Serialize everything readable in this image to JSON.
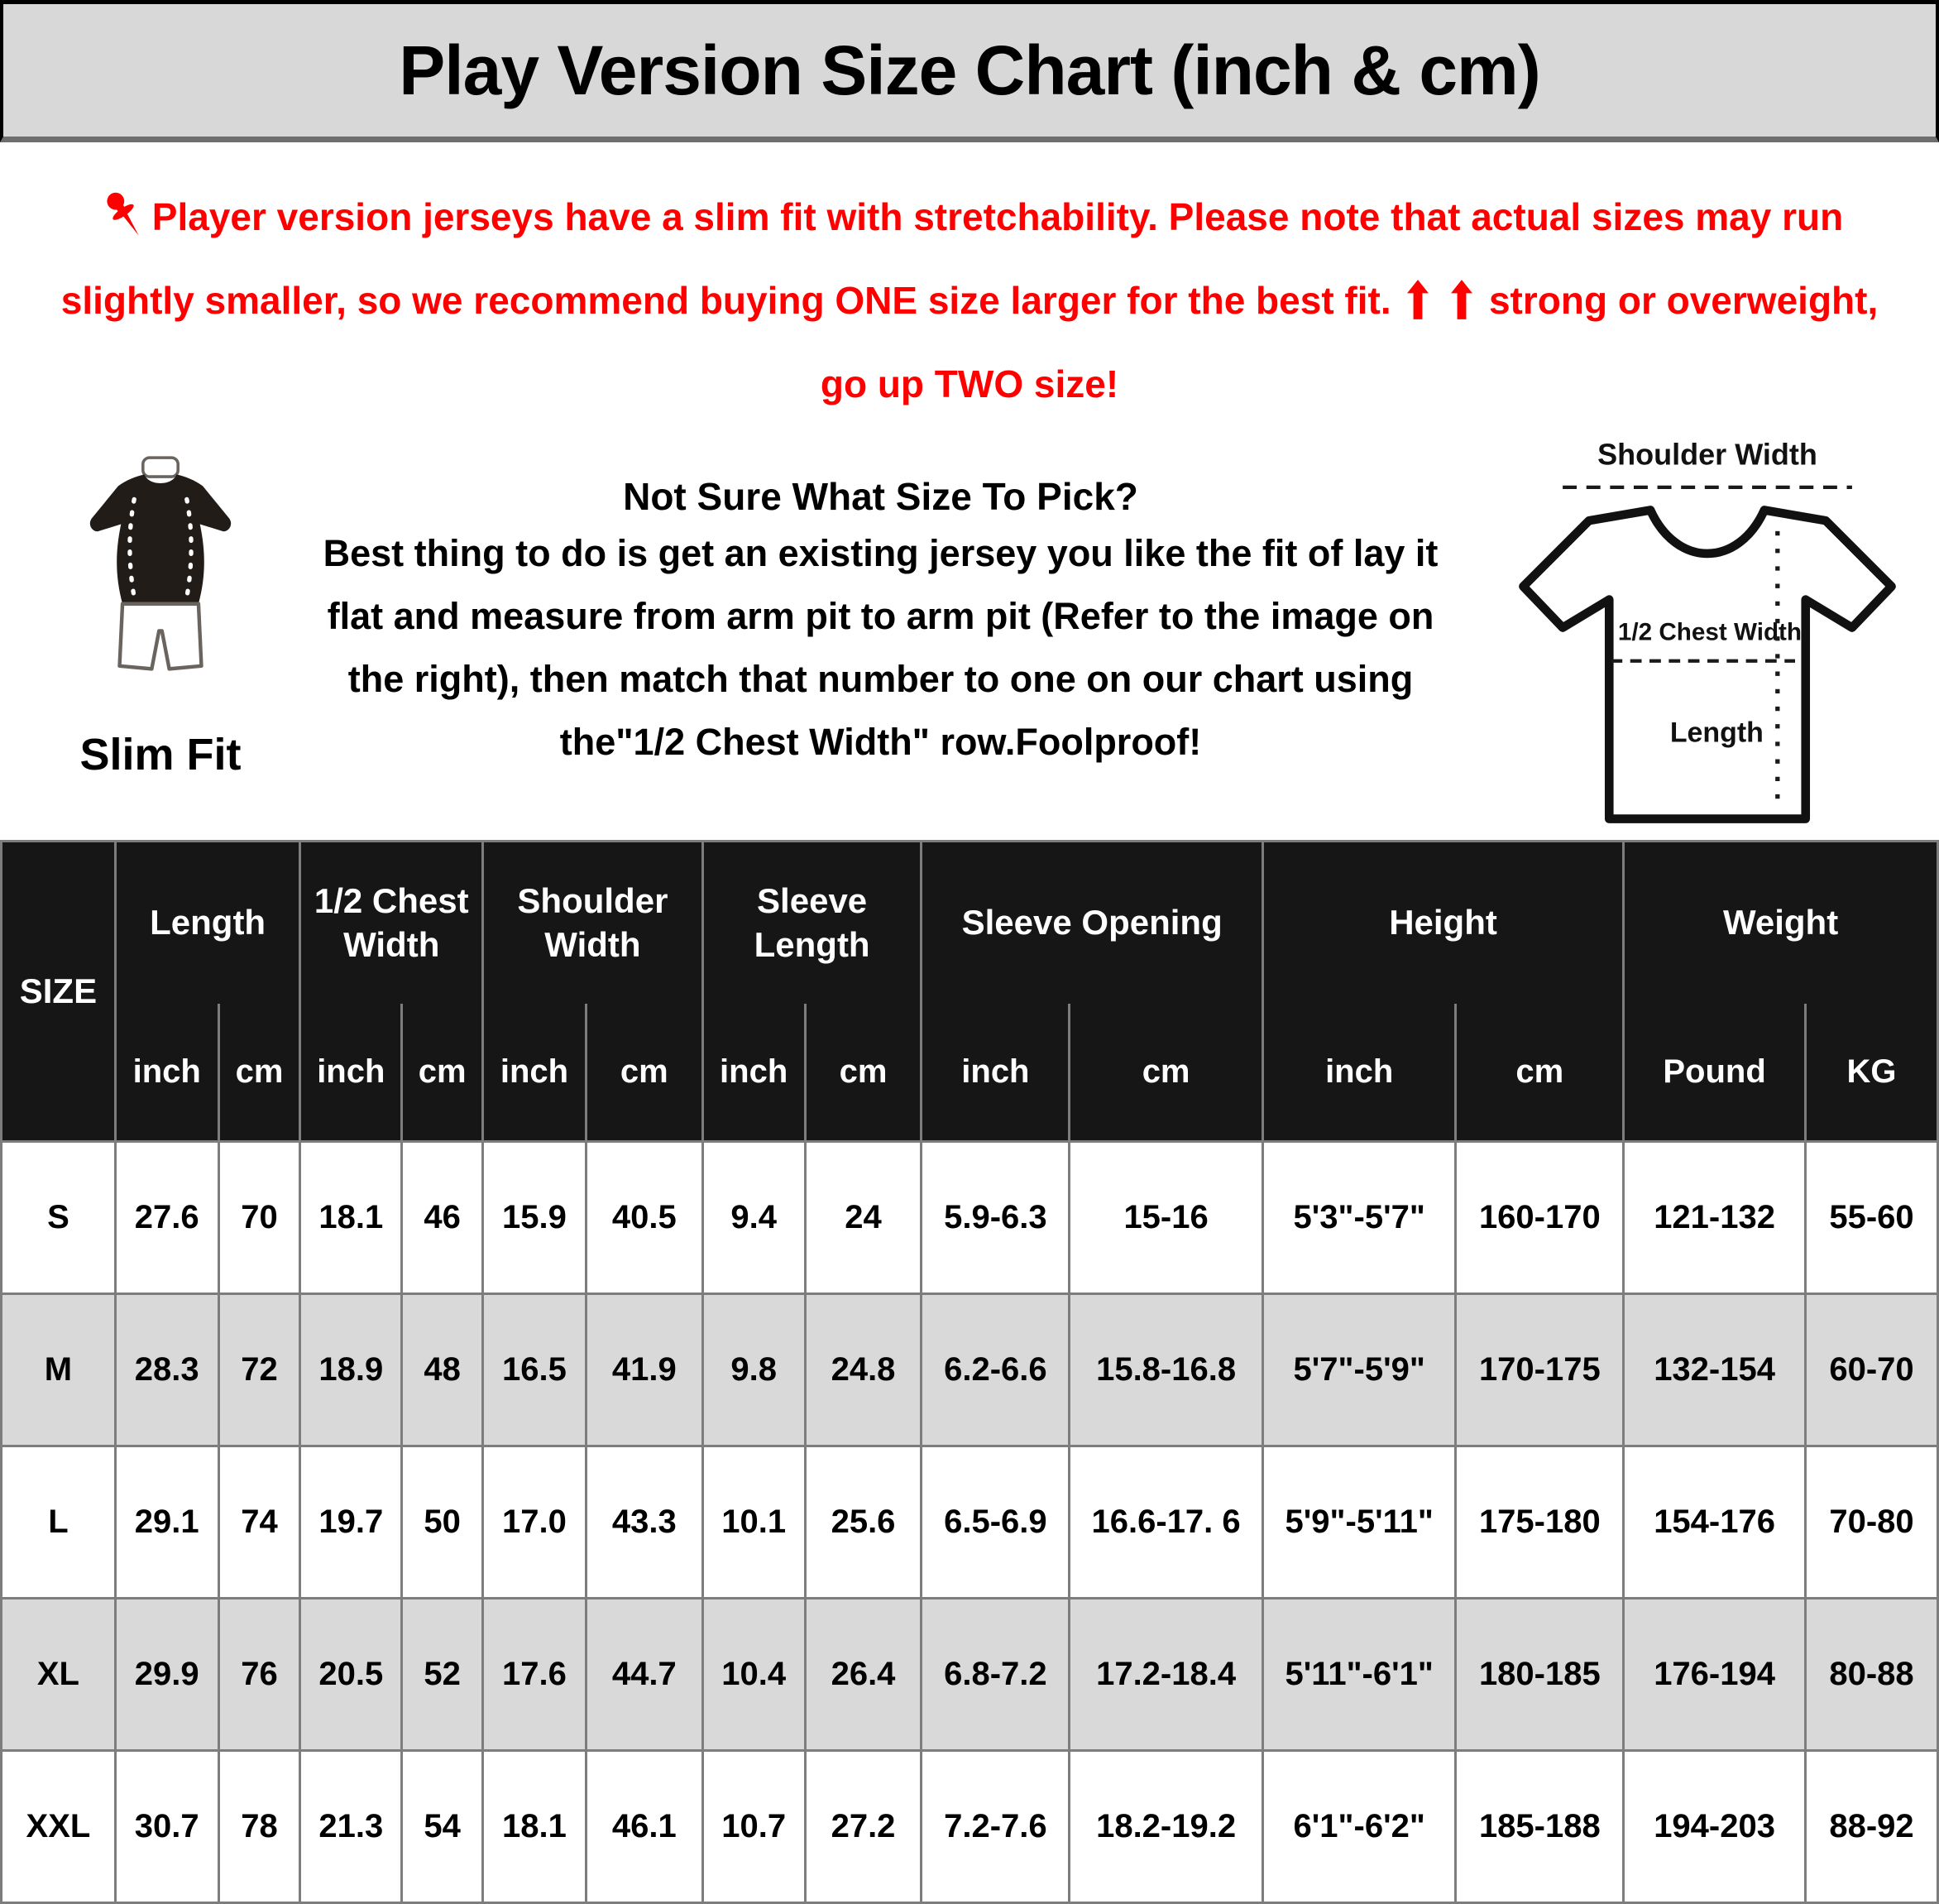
{
  "header": {
    "title": "Play Version Size Chart (inch & cm)"
  },
  "notice": {
    "line1": "Player version jerseys have a slim fit with stretchability. Please note that actual sizes may run",
    "line2_before_arrows": "slightly smaller, so we recommend buying ONE size larger for the best fit.",
    "line2_after_arrows": "strong or overweight,",
    "line3": "go up TWO size!",
    "accent_color": "#ff0000"
  },
  "fit_guide": {
    "slim_fit_label": "Slim Fit",
    "heading": "Not Sure What Size To Pick?",
    "lines": [
      "Best thing to do is get an existing jersey you like the fit of lay it",
      "flat and measure from arm pit to arm pit (Refer to the image on",
      "the right), then match that number to one on our chart using",
      "the\"1/2 Chest Width\" row.Foolproof!"
    ]
  },
  "diagram": {
    "shoulder_width_label": "Shoulder Width",
    "half_chest_width_label": "1/2 Chest Width",
    "length_label": "Length"
  },
  "table": {
    "size_header": "SIZE",
    "groups": [
      {
        "label": "Length",
        "subs": [
          "inch",
          "cm"
        ]
      },
      {
        "label": "1/2 Chest Width",
        "subs": [
          "inch",
          "cm"
        ]
      },
      {
        "label": "Shoulder Width",
        "subs": [
          "inch",
          "cm"
        ]
      },
      {
        "label": "Sleeve Length",
        "subs": [
          "inch",
          "cm"
        ]
      },
      {
        "label": "Sleeve Opening",
        "subs": [
          "inch",
          "cm"
        ]
      },
      {
        "label": "Height",
        "subs": [
          "inch",
          "cm"
        ]
      },
      {
        "label": "Weight",
        "subs": [
          "Pound",
          "KG"
        ]
      }
    ],
    "rows": [
      {
        "size": "S",
        "values": [
          "27.6",
          "70",
          "18.1",
          "46",
          "15.9",
          "40.5",
          "9.4",
          "24",
          "5.9-6.3",
          "15-16",
          "5'3\"-5'7\"",
          "160-170",
          "121-132",
          "55-60"
        ]
      },
      {
        "size": "M",
        "values": [
          "28.3",
          "72",
          "18.9",
          "48",
          "16.5",
          "41.9",
          "9.8",
          "24.8",
          "6.2-6.6",
          "15.8-16.8",
          "5'7\"-5'9\"",
          "170-175",
          "132-154",
          "60-70"
        ]
      },
      {
        "size": "L",
        "values": [
          "29.1",
          "74",
          "19.7",
          "50",
          "17.0",
          "43.3",
          "10.1",
          "25.6",
          "6.5-6.9",
          "16.6-17. 6",
          "5'9\"-5'11\"",
          "175-180",
          "154-176",
          "70-80"
        ]
      },
      {
        "size": "XL",
        "values": [
          "29.9",
          "76",
          "20.5",
          "52",
          "17.6",
          "44.7",
          "10.4",
          "26.4",
          "6.8-7.2",
          "17.2-18.4",
          "5'11\"-6'1\"",
          "180-185",
          "176-194",
          "80-88"
        ]
      },
      {
        "size": "XXL",
        "values": [
          "30.7",
          "78",
          "21.3",
          "54",
          "18.1",
          "46.1",
          "10.7",
          "27.2",
          "7.2-7.6",
          "18.2-19.2",
          "6'1\"-6'2\"",
          "185-188",
          "194-203",
          "88-92"
        ]
      }
    ]
  },
  "colors": {
    "accent_red": "#ff0000",
    "band_bg": "#d8d8d8",
    "table_header_bg": "#161616",
    "alt_row_bg": "#d9d9d9",
    "grid_border": "#7d7d7d"
  },
  "icons": {
    "pushpin": "red pushpin (📌 silhouette)",
    "up_arrow": "solid red up arrow ⬆",
    "slim_fit_figure": "black slim-fit tee with white shorts",
    "tshirt_diagram": "white tee outline with measurement dashed lines"
  }
}
